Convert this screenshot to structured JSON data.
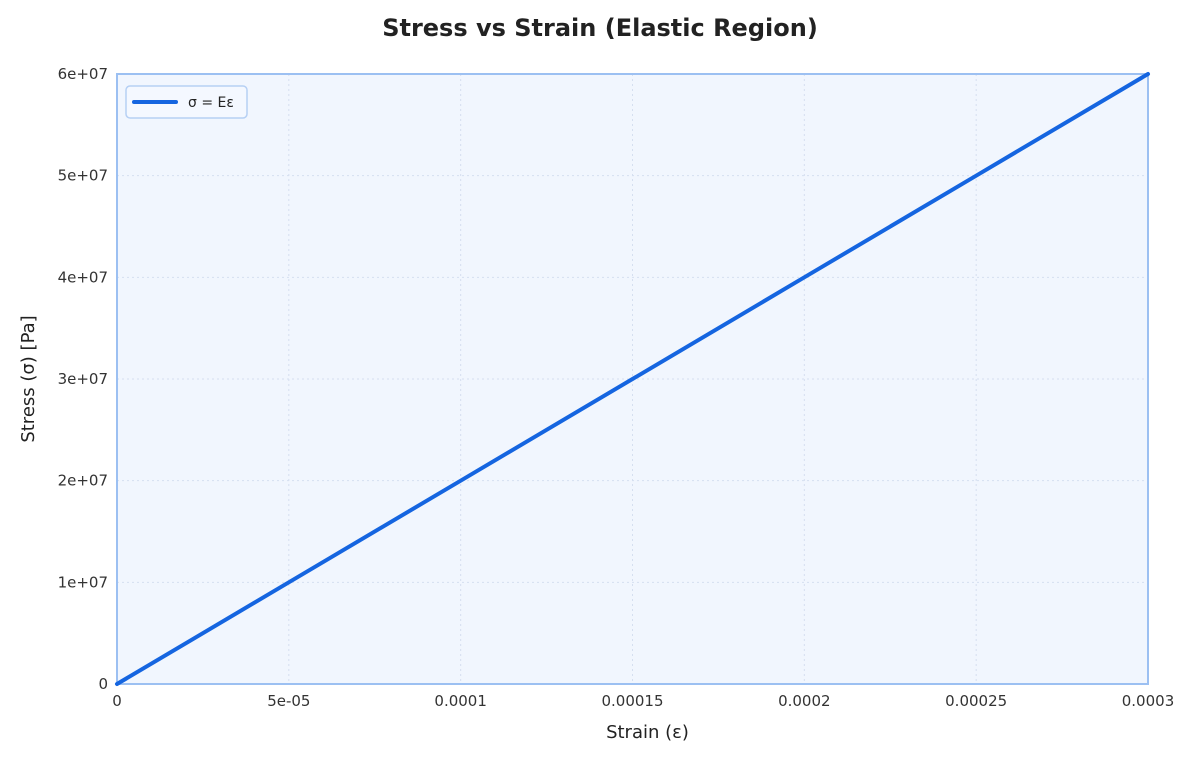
{
  "chart_data": {
    "type": "line",
    "title": "Stress vs Strain (Elastic Region)",
    "xlabel": "Strain (ε)",
    "ylabel": "Stress (σ) [Pa]",
    "xlim": [
      0,
      0.0003
    ],
    "ylim": [
      0,
      60000000
    ],
    "x_ticks": [
      "0",
      "5e-05",
      "0.0001",
      "0.00015",
      "0.0002",
      "0.00025",
      "0.0003"
    ],
    "y_ticks": [
      "0",
      "1e+07",
      "2e+07",
      "3e+07",
      "4e+07",
      "5e+07",
      "6e+07"
    ],
    "grid": true,
    "legend_position": "upper left",
    "series": [
      {
        "name": "σ = Eε",
        "color": "#1565e0",
        "x": [
          0,
          5e-05,
          0.0001,
          0.00015,
          0.0002,
          0.00025,
          0.0003
        ],
        "y": [
          0,
          10000000,
          20000000,
          30000000,
          40000000,
          50000000,
          60000000
        ]
      }
    ]
  },
  "colors": {
    "plot_bg": "#f1f6fe",
    "frame": "#9cc0f2",
    "line": "#1565e0"
  }
}
